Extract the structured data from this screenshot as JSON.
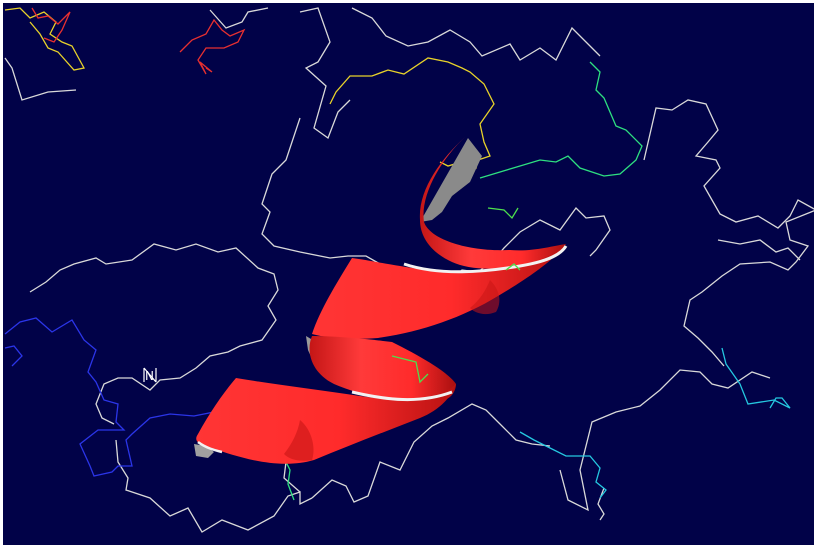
{
  "viewer": {
    "background_color": "#010248",
    "border_color": "#ffffff"
  },
  "colors": {
    "backbone": "#d9d9d9",
    "helix": "#ff2b2b",
    "helix_dark": "#b31010",
    "helix_edge": "#f2f2f2",
    "yellow_segment": "#e8d22a",
    "red_segment": "#e83030",
    "green_segment": "#2ee080",
    "blue_segment": "#2b35e8",
    "cyan_segment": "#25c8e0",
    "sidechain": "#4de04d"
  },
  "labels": {
    "atom_label": "N"
  },
  "icons": [
    "helix-ribbon"
  ]
}
